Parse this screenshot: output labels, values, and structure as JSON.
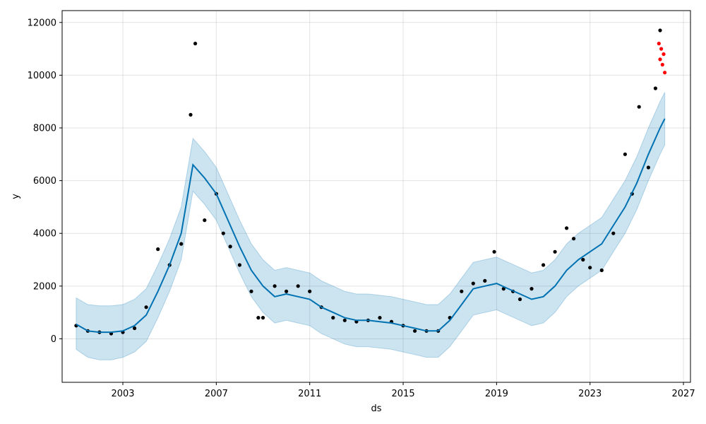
{
  "chart_data": {
    "type": "scatter",
    "title": "",
    "xlabel": "ds",
    "ylabel": "y",
    "xlim": [
      2000.4,
      2027.3
    ],
    "ylim": [
      -1650,
      12450
    ],
    "x_ticks": [
      "2003",
      "2007",
      "2011",
      "2015",
      "2019",
      "2023",
      "2027"
    ],
    "x_tick_values": [
      2003,
      2007,
      2011,
      2015,
      2019,
      2023,
      2027
    ],
    "y_ticks": [
      "0",
      "2000",
      "4000",
      "6000",
      "8000",
      "10000",
      "12000"
    ],
    "y_tick_values": [
      0,
      2000,
      4000,
      6000,
      8000,
      10000,
      12000
    ],
    "grid": true,
    "colors": {
      "observed": "#000000",
      "highlighted": "#ff0000",
      "forecast_line": "#0072B2",
      "uncertainty_band": "#0072B2"
    },
    "forecast": {
      "x": [
        2001.0,
        2001.5,
        2002.0,
        2002.5,
        2003.0,
        2003.5,
        2004.0,
        2004.5,
        2005.0,
        2005.5,
        2006.0,
        2006.5,
        2007.0,
        2007.5,
        2008.0,
        2008.5,
        2009.0,
        2009.5,
        2010.0,
        2010.5,
        2011.0,
        2011.5,
        2012.0,
        2012.5,
        2013.0,
        2013.5,
        2014.0,
        2014.5,
        2015.0,
        2015.5,
        2016.0,
        2016.5,
        2017.0,
        2017.5,
        2018.0,
        2018.5,
        2019.0,
        2019.5,
        2020.0,
        2020.5,
        2021.0,
        2021.5,
        2022.0,
        2022.5,
        2023.0,
        2023.5,
        2024.0,
        2024.5,
        2025.0,
        2025.5,
        2026.0,
        2026.2
      ],
      "yhat": [
        550,
        300,
        250,
        250,
        300,
        500,
        900,
        1800,
        2800,
        4000,
        6600,
        6100,
        5500,
        4500,
        3500,
        2600,
        2000,
        1600,
        1700,
        1600,
        1500,
        1200,
        1000,
        800,
        700,
        700,
        650,
        600,
        500,
        400,
        300,
        300,
        700,
        1300,
        1900,
        2000,
        2100,
        1900,
        1700,
        1500,
        1600,
        2000,
        2600,
        3000,
        3300,
        3600,
        4300,
        5000,
        5900,
        7000,
        8000,
        8350
      ],
      "yhat_lower": [
        -400,
        -700,
        -800,
        -800,
        -700,
        -500,
        -100,
        800,
        1800,
        3000,
        5600,
        5100,
        4500,
        3500,
        2500,
        1600,
        1000,
        600,
        700,
        600,
        500,
        200,
        0,
        -200,
        -300,
        -300,
        -350,
        -400,
        -500,
        -600,
        -700,
        -700,
        -300,
        300,
        900,
        1000,
        1100,
        900,
        700,
        500,
        600,
        1000,
        1600,
        2000,
        2300,
        2600,
        3300,
        4000,
        4900,
        6000,
        7000,
        7350
      ],
      "yhat_upper": [
        1550,
        1300,
        1250,
        1250,
        1300,
        1500,
        1900,
        2800,
        3800,
        5000,
        7600,
        7100,
        6500,
        5500,
        4500,
        3600,
        3000,
        2600,
        2700,
        2600,
        2500,
        2200,
        2000,
        1800,
        1700,
        1700,
        1650,
        1600,
        1500,
        1400,
        1300,
        1300,
        1700,
        2300,
        2900,
        3000,
        3100,
        2900,
        2700,
        2500,
        2600,
        3000,
        3600,
        4000,
        4300,
        4600,
        5300,
        6000,
        6900,
        8000,
        9000,
        9350
      ]
    },
    "observed": {
      "x": [
        2001.0,
        2001.5,
        2002.0,
        2002.5,
        2003.0,
        2003.5,
        2004.0,
        2004.5,
        2005.0,
        2005.5,
        2005.9,
        2006.1,
        2006.5,
        2007.0,
        2007.3,
        2007.6,
        2008.0,
        2008.5,
        2008.8,
        2009.0,
        2009.5,
        2010.0,
        2010.5,
        2011.0,
        2011.5,
        2012.0,
        2012.5,
        2013.0,
        2013.5,
        2014.0,
        2014.5,
        2015.0,
        2015.5,
        2016.0,
        2016.5,
        2017.0,
        2017.5,
        2018.0,
        2018.5,
        2018.9,
        2019.3,
        2019.7,
        2020.0,
        2020.5,
        2021.0,
        2021.5,
        2022.0,
        2022.3,
        2022.7,
        2023.0,
        2023.5,
        2024.0,
        2024.5,
        2024.8,
        2025.1,
        2025.5,
        2025.8,
        2026.0
      ],
      "y": [
        500,
        300,
        250,
        200,
        250,
        400,
        1200,
        3400,
        2800,
        3600,
        8500,
        11200,
        4500,
        5500,
        4000,
        3500,
        2800,
        1800,
        800,
        800,
        2000,
        1800,
        2000,
        1800,
        1200,
        800,
        700,
        650,
        700,
        800,
        650,
        500,
        300,
        300,
        300,
        800,
        1800,
        2100,
        2200,
        3300,
        1900,
        1800,
        1500,
        1900,
        2800,
        3300,
        4200,
        3800,
        3000,
        2700,
        2600,
        4000,
        7000,
        5500,
        8800,
        6500,
        9500,
        11700
      ]
    },
    "highlighted": {
      "x": [
        2025.95,
        2026.0,
        2026.05,
        2026.1,
        2026.15,
        2026.2
      ],
      "y": [
        11200,
        10600,
        11000,
        10400,
        10800,
        10100
      ]
    }
  }
}
